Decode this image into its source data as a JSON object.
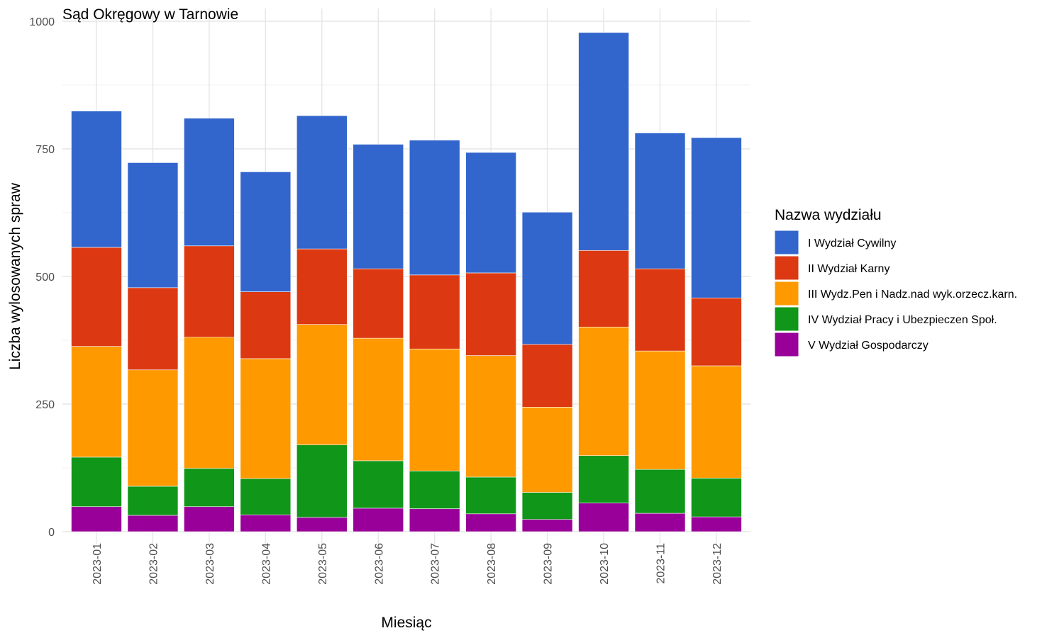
{
  "chart_data": {
    "type": "bar",
    "stacked": true,
    "title": "Sąd Okręgowy w Tarnowie",
    "xlabel": "Miesiąc",
    "ylabel": "Liczba wylosowanych spraw",
    "ylim": [
      0,
      1000
    ],
    "yticks": [
      0,
      250,
      500,
      750,
      1000
    ],
    "grid": true,
    "legend_title": "Nazwa wydziału",
    "legend_position": "right",
    "categories": [
      "2023-01",
      "2023-02",
      "2023-03",
      "2023-04",
      "2023-05",
      "2023-06",
      "2023-07",
      "2023-08",
      "2023-09",
      "2023-10",
      "2023-11",
      "2023-12"
    ],
    "series": [
      {
        "name": "V Wydział Gospodarczy",
        "color": "#990099",
        "values": [
          49,
          32,
          49,
          33,
          28,
          46,
          45,
          35,
          24,
          56,
          36,
          29
        ]
      },
      {
        "name": "IV Wydział Pracy i Ubezpieczen Społ.",
        "color": "#109618",
        "values": [
          97,
          57,
          75,
          71,
          142,
          93,
          74,
          72,
          53,
          93,
          86,
          76
        ]
      },
      {
        "name": "III Wydz.Pen i Nadz.nad wyk.orzecz.karn.",
        "color": "#FF9900",
        "values": [
          217,
          228,
          257,
          235,
          236,
          240,
          239,
          238,
          167,
          252,
          232,
          220
        ]
      },
      {
        "name": "II Wydział Karny",
        "color": "#DC3912",
        "values": [
          194,
          161,
          179,
          131,
          148,
          136,
          145,
          162,
          123,
          150,
          161,
          133
        ]
      },
      {
        "name": "I Wydział Cywilny",
        "color": "#3366CC",
        "values": [
          267,
          245,
          250,
          235,
          261,
          244,
          264,
          236,
          259,
          427,
          266,
          314
        ]
      }
    ]
  }
}
